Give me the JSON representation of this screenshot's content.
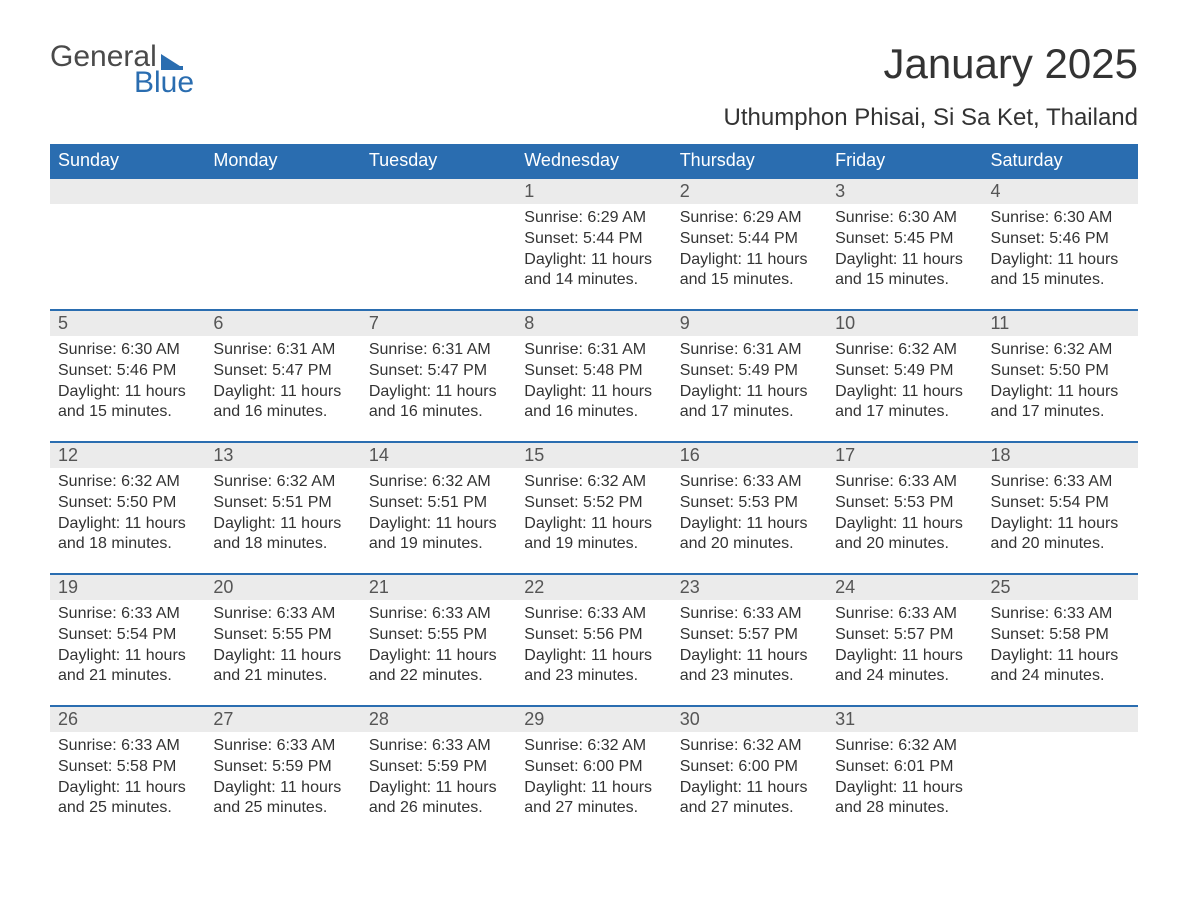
{
  "logo": {
    "line1": "General",
    "line2": "Blue"
  },
  "title": "January 2025",
  "location": "Uthumphon Phisai, Si Sa Ket, Thailand",
  "colors": {
    "header_bg": "#2a6db0",
    "header_text": "#ffffff",
    "daynum_bg": "#ebebeb",
    "row_border": "#2a6db0",
    "body_text": "#333333",
    "logo_gray": "#4a4a4a",
    "logo_blue": "#2a6db0",
    "page_bg": "#ffffff"
  },
  "weekdays": [
    "Sunday",
    "Monday",
    "Tuesday",
    "Wednesday",
    "Thursday",
    "Friday",
    "Saturday"
  ],
  "weeks": [
    [
      null,
      null,
      null,
      {
        "n": "1",
        "sunrise": "6:29 AM",
        "sunset": "5:44 PM",
        "daylight": "11 hours and 14 minutes."
      },
      {
        "n": "2",
        "sunrise": "6:29 AM",
        "sunset": "5:44 PM",
        "daylight": "11 hours and 15 minutes."
      },
      {
        "n": "3",
        "sunrise": "6:30 AM",
        "sunset": "5:45 PM",
        "daylight": "11 hours and 15 minutes."
      },
      {
        "n": "4",
        "sunrise": "6:30 AM",
        "sunset": "5:46 PM",
        "daylight": "11 hours and 15 minutes."
      }
    ],
    [
      {
        "n": "5",
        "sunrise": "6:30 AM",
        "sunset": "5:46 PM",
        "daylight": "11 hours and 15 minutes."
      },
      {
        "n": "6",
        "sunrise": "6:31 AM",
        "sunset": "5:47 PM",
        "daylight": "11 hours and 16 minutes."
      },
      {
        "n": "7",
        "sunrise": "6:31 AM",
        "sunset": "5:47 PM",
        "daylight": "11 hours and 16 minutes."
      },
      {
        "n": "8",
        "sunrise": "6:31 AM",
        "sunset": "5:48 PM",
        "daylight": "11 hours and 16 minutes."
      },
      {
        "n": "9",
        "sunrise": "6:31 AM",
        "sunset": "5:49 PM",
        "daylight": "11 hours and 17 minutes."
      },
      {
        "n": "10",
        "sunrise": "6:32 AM",
        "sunset": "5:49 PM",
        "daylight": "11 hours and 17 minutes."
      },
      {
        "n": "11",
        "sunrise": "6:32 AM",
        "sunset": "5:50 PM",
        "daylight": "11 hours and 17 minutes."
      }
    ],
    [
      {
        "n": "12",
        "sunrise": "6:32 AM",
        "sunset": "5:50 PM",
        "daylight": "11 hours and 18 minutes."
      },
      {
        "n": "13",
        "sunrise": "6:32 AM",
        "sunset": "5:51 PM",
        "daylight": "11 hours and 18 minutes."
      },
      {
        "n": "14",
        "sunrise": "6:32 AM",
        "sunset": "5:51 PM",
        "daylight": "11 hours and 19 minutes."
      },
      {
        "n": "15",
        "sunrise": "6:32 AM",
        "sunset": "5:52 PM",
        "daylight": "11 hours and 19 minutes."
      },
      {
        "n": "16",
        "sunrise": "6:33 AM",
        "sunset": "5:53 PM",
        "daylight": "11 hours and 20 minutes."
      },
      {
        "n": "17",
        "sunrise": "6:33 AM",
        "sunset": "5:53 PM",
        "daylight": "11 hours and 20 minutes."
      },
      {
        "n": "18",
        "sunrise": "6:33 AM",
        "sunset": "5:54 PM",
        "daylight": "11 hours and 20 minutes."
      }
    ],
    [
      {
        "n": "19",
        "sunrise": "6:33 AM",
        "sunset": "5:54 PM",
        "daylight": "11 hours and 21 minutes."
      },
      {
        "n": "20",
        "sunrise": "6:33 AM",
        "sunset": "5:55 PM",
        "daylight": "11 hours and 21 minutes."
      },
      {
        "n": "21",
        "sunrise": "6:33 AM",
        "sunset": "5:55 PM",
        "daylight": "11 hours and 22 minutes."
      },
      {
        "n": "22",
        "sunrise": "6:33 AM",
        "sunset": "5:56 PM",
        "daylight": "11 hours and 23 minutes."
      },
      {
        "n": "23",
        "sunrise": "6:33 AM",
        "sunset": "5:57 PM",
        "daylight": "11 hours and 23 minutes."
      },
      {
        "n": "24",
        "sunrise": "6:33 AM",
        "sunset": "5:57 PM",
        "daylight": "11 hours and 24 minutes."
      },
      {
        "n": "25",
        "sunrise": "6:33 AM",
        "sunset": "5:58 PM",
        "daylight": "11 hours and 24 minutes."
      }
    ],
    [
      {
        "n": "26",
        "sunrise": "6:33 AM",
        "sunset": "5:58 PM",
        "daylight": "11 hours and 25 minutes."
      },
      {
        "n": "27",
        "sunrise": "6:33 AM",
        "sunset": "5:59 PM",
        "daylight": "11 hours and 25 minutes."
      },
      {
        "n": "28",
        "sunrise": "6:33 AM",
        "sunset": "5:59 PM",
        "daylight": "11 hours and 26 minutes."
      },
      {
        "n": "29",
        "sunrise": "6:32 AM",
        "sunset": "6:00 PM",
        "daylight": "11 hours and 27 minutes."
      },
      {
        "n": "30",
        "sunrise": "6:32 AM",
        "sunset": "6:00 PM",
        "daylight": "11 hours and 27 minutes."
      },
      {
        "n": "31",
        "sunrise": "6:32 AM",
        "sunset": "6:01 PM",
        "daylight": "11 hours and 28 minutes."
      },
      null
    ]
  ],
  "labels": {
    "sunrise": "Sunrise: ",
    "sunset": "Sunset: ",
    "daylight": "Daylight: "
  }
}
